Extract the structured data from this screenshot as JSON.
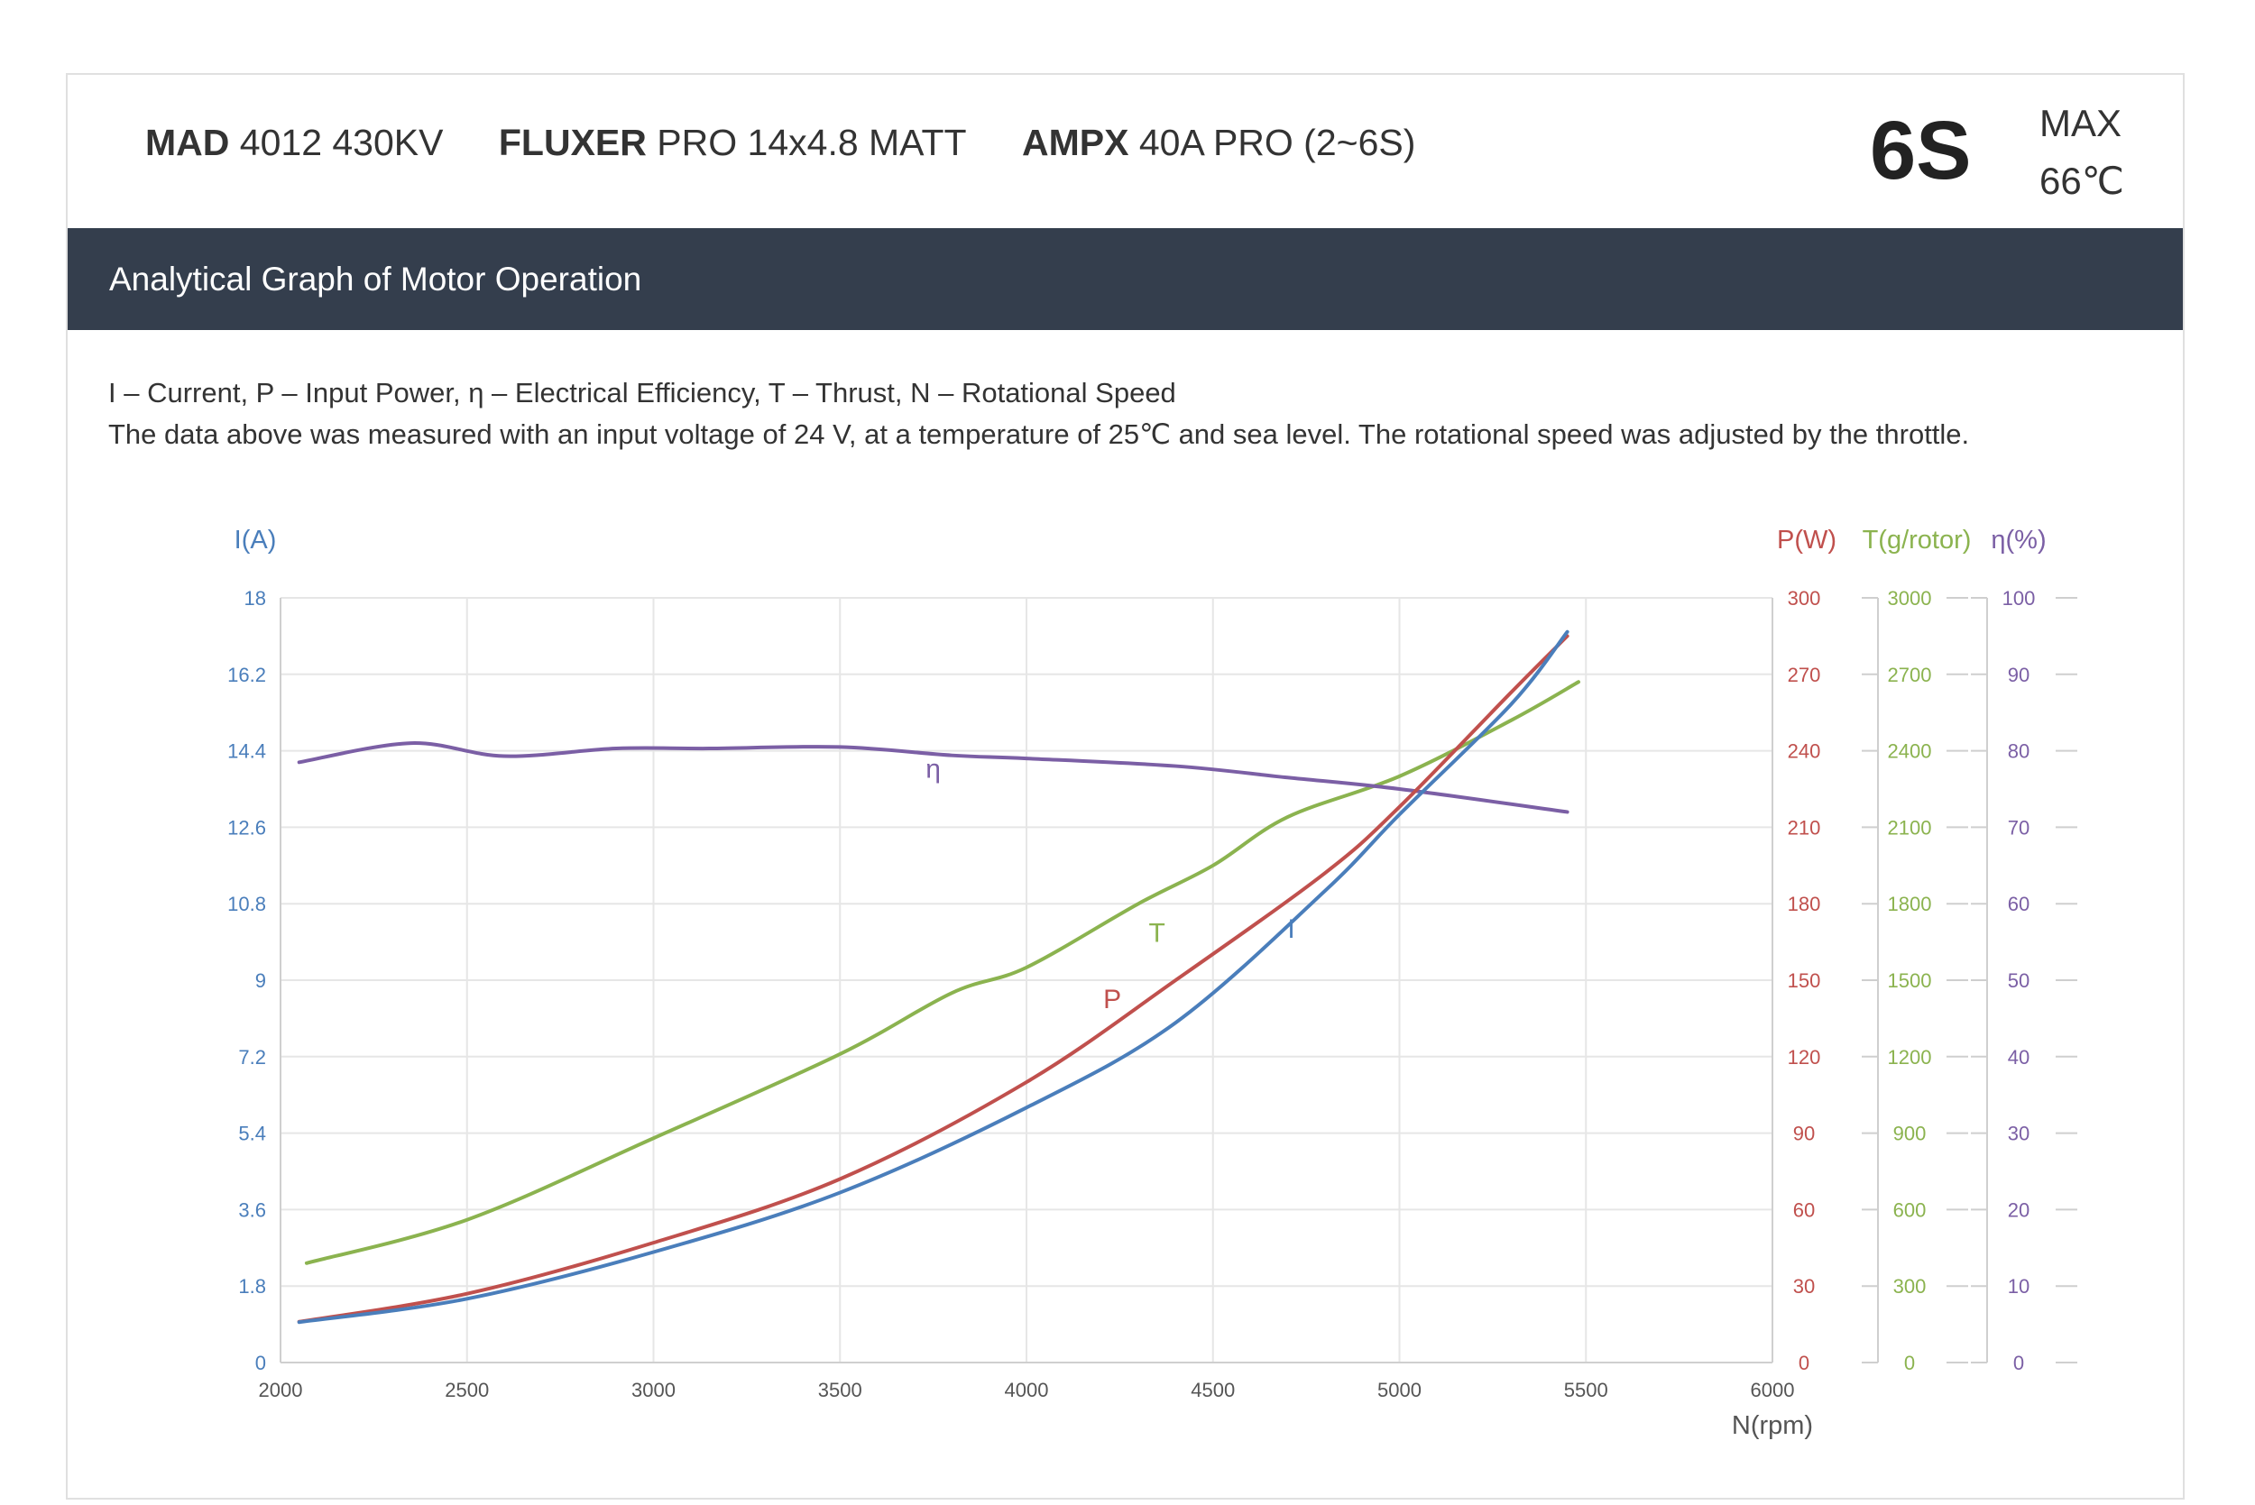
{
  "header": {
    "motor_brand": "MAD",
    "motor_model": "4012 430KV",
    "prop_brand": "FLUXER",
    "prop_model": "PRO 14x4.8 MATT",
    "esc_brand": "AMPX",
    "esc_model": "40A PRO (2~6S)",
    "cells": "6S",
    "max_label": "MAX",
    "max_temp": "66℃"
  },
  "section_title": "Analytical Graph of Motor Operation",
  "notes": {
    "legend_line": "I – Current, P – Input Power, η – Electrical Efficiency, T – Thrust,   N – Rotational Speed",
    "conditions_line": "The data above was measured with an input voltage of 24 V, at a temperature of 25℃ and sea level. The rotational speed was adjusted by the throttle."
  },
  "colors": {
    "current": "#4a7ebb",
    "power": "#c0504d",
    "thrust": "#8bb34f",
    "efficiency": "#7b5fa5",
    "bar_bg": "#343e4d"
  },
  "chart_data": {
    "type": "line",
    "xlabel": "N(rpm)",
    "xlim": [
      2000,
      6000
    ],
    "x_ticks": [
      "2000",
      "2500",
      "3000",
      "3500",
      "4000",
      "4500",
      "5000",
      "5500",
      "6000"
    ],
    "axes": {
      "current": {
        "label": "I(A)",
        "lim": [
          0,
          18
        ],
        "ticks": [
          "0",
          "1.8",
          "3.6",
          "5.4",
          "7.2",
          "9",
          "10.8",
          "12.6",
          "14.4",
          "16.2",
          "18"
        ]
      },
      "power": {
        "label": "P(W)",
        "lim": [
          0,
          300
        ],
        "ticks": [
          "0",
          "30",
          "60",
          "90",
          "120",
          "150",
          "180",
          "210",
          "240",
          "270",
          "300"
        ]
      },
      "thrust": {
        "label": "T(g/rotor)",
        "lim": [
          0,
          3000
        ],
        "ticks": [
          "0",
          "300",
          "600",
          "900",
          "1200",
          "1500",
          "1800",
          "2100",
          "2400",
          "2700",
          "3000"
        ]
      },
      "efficiency": {
        "label": "η(%)",
        "lim": [
          0,
          100
        ],
        "ticks": [
          "0",
          "10",
          "20",
          "30",
          "40",
          "50",
          "60",
          "70",
          "80",
          "90",
          "100"
        ]
      }
    },
    "series": [
      {
        "name": "I",
        "axis": "current",
        "x": [
          2050,
          2500,
          3000,
          3500,
          4000,
          4400,
          4800,
          5000,
          5300,
          5450
        ],
        "values": [
          0.95,
          1.5,
          2.6,
          4.0,
          6.0,
          8.0,
          11.1,
          12.9,
          15.5,
          17.2
        ]
      },
      {
        "name": "P",
        "axis": "power",
        "x": [
          2050,
          2500,
          3000,
          3500,
          4000,
          4400,
          4800,
          5000,
          5300,
          5450
        ],
        "values": [
          16,
          27,
          47,
          72,
          110,
          150,
          192,
          218,
          263,
          285
        ]
      },
      {
        "name": "T",
        "axis": "thrust",
        "x": [
          2070,
          2500,
          3000,
          3500,
          3800,
          4000,
          4300,
          4500,
          4700,
          5000,
          5300,
          5480
        ],
        "values": [
          390,
          560,
          880,
          1210,
          1450,
          1550,
          1800,
          1950,
          2140,
          2300,
          2520,
          2670
        ]
      },
      {
        "name": "η",
        "axis": "efficiency",
        "x": [
          2050,
          2350,
          2600,
          2900,
          3150,
          3500,
          3800,
          4000,
          4400,
          4700,
          5000,
          5450
        ],
        "values": [
          78.5,
          81,
          79.3,
          80.3,
          80.3,
          80.5,
          79.4,
          79,
          78,
          76.5,
          75,
          72
        ]
      }
    ],
    "annotations": [
      {
        "text": "η",
        "x": 3750,
        "axis": "efficiency",
        "y": 76.5
      },
      {
        "text": "T",
        "x": 4350,
        "axis": "thrust",
        "y": 1650
      },
      {
        "text": "P",
        "x": 4230,
        "axis": "power",
        "y": 139
      },
      {
        "text": "I",
        "x": 4710,
        "axis": "current",
        "y": 10.0
      }
    ]
  }
}
